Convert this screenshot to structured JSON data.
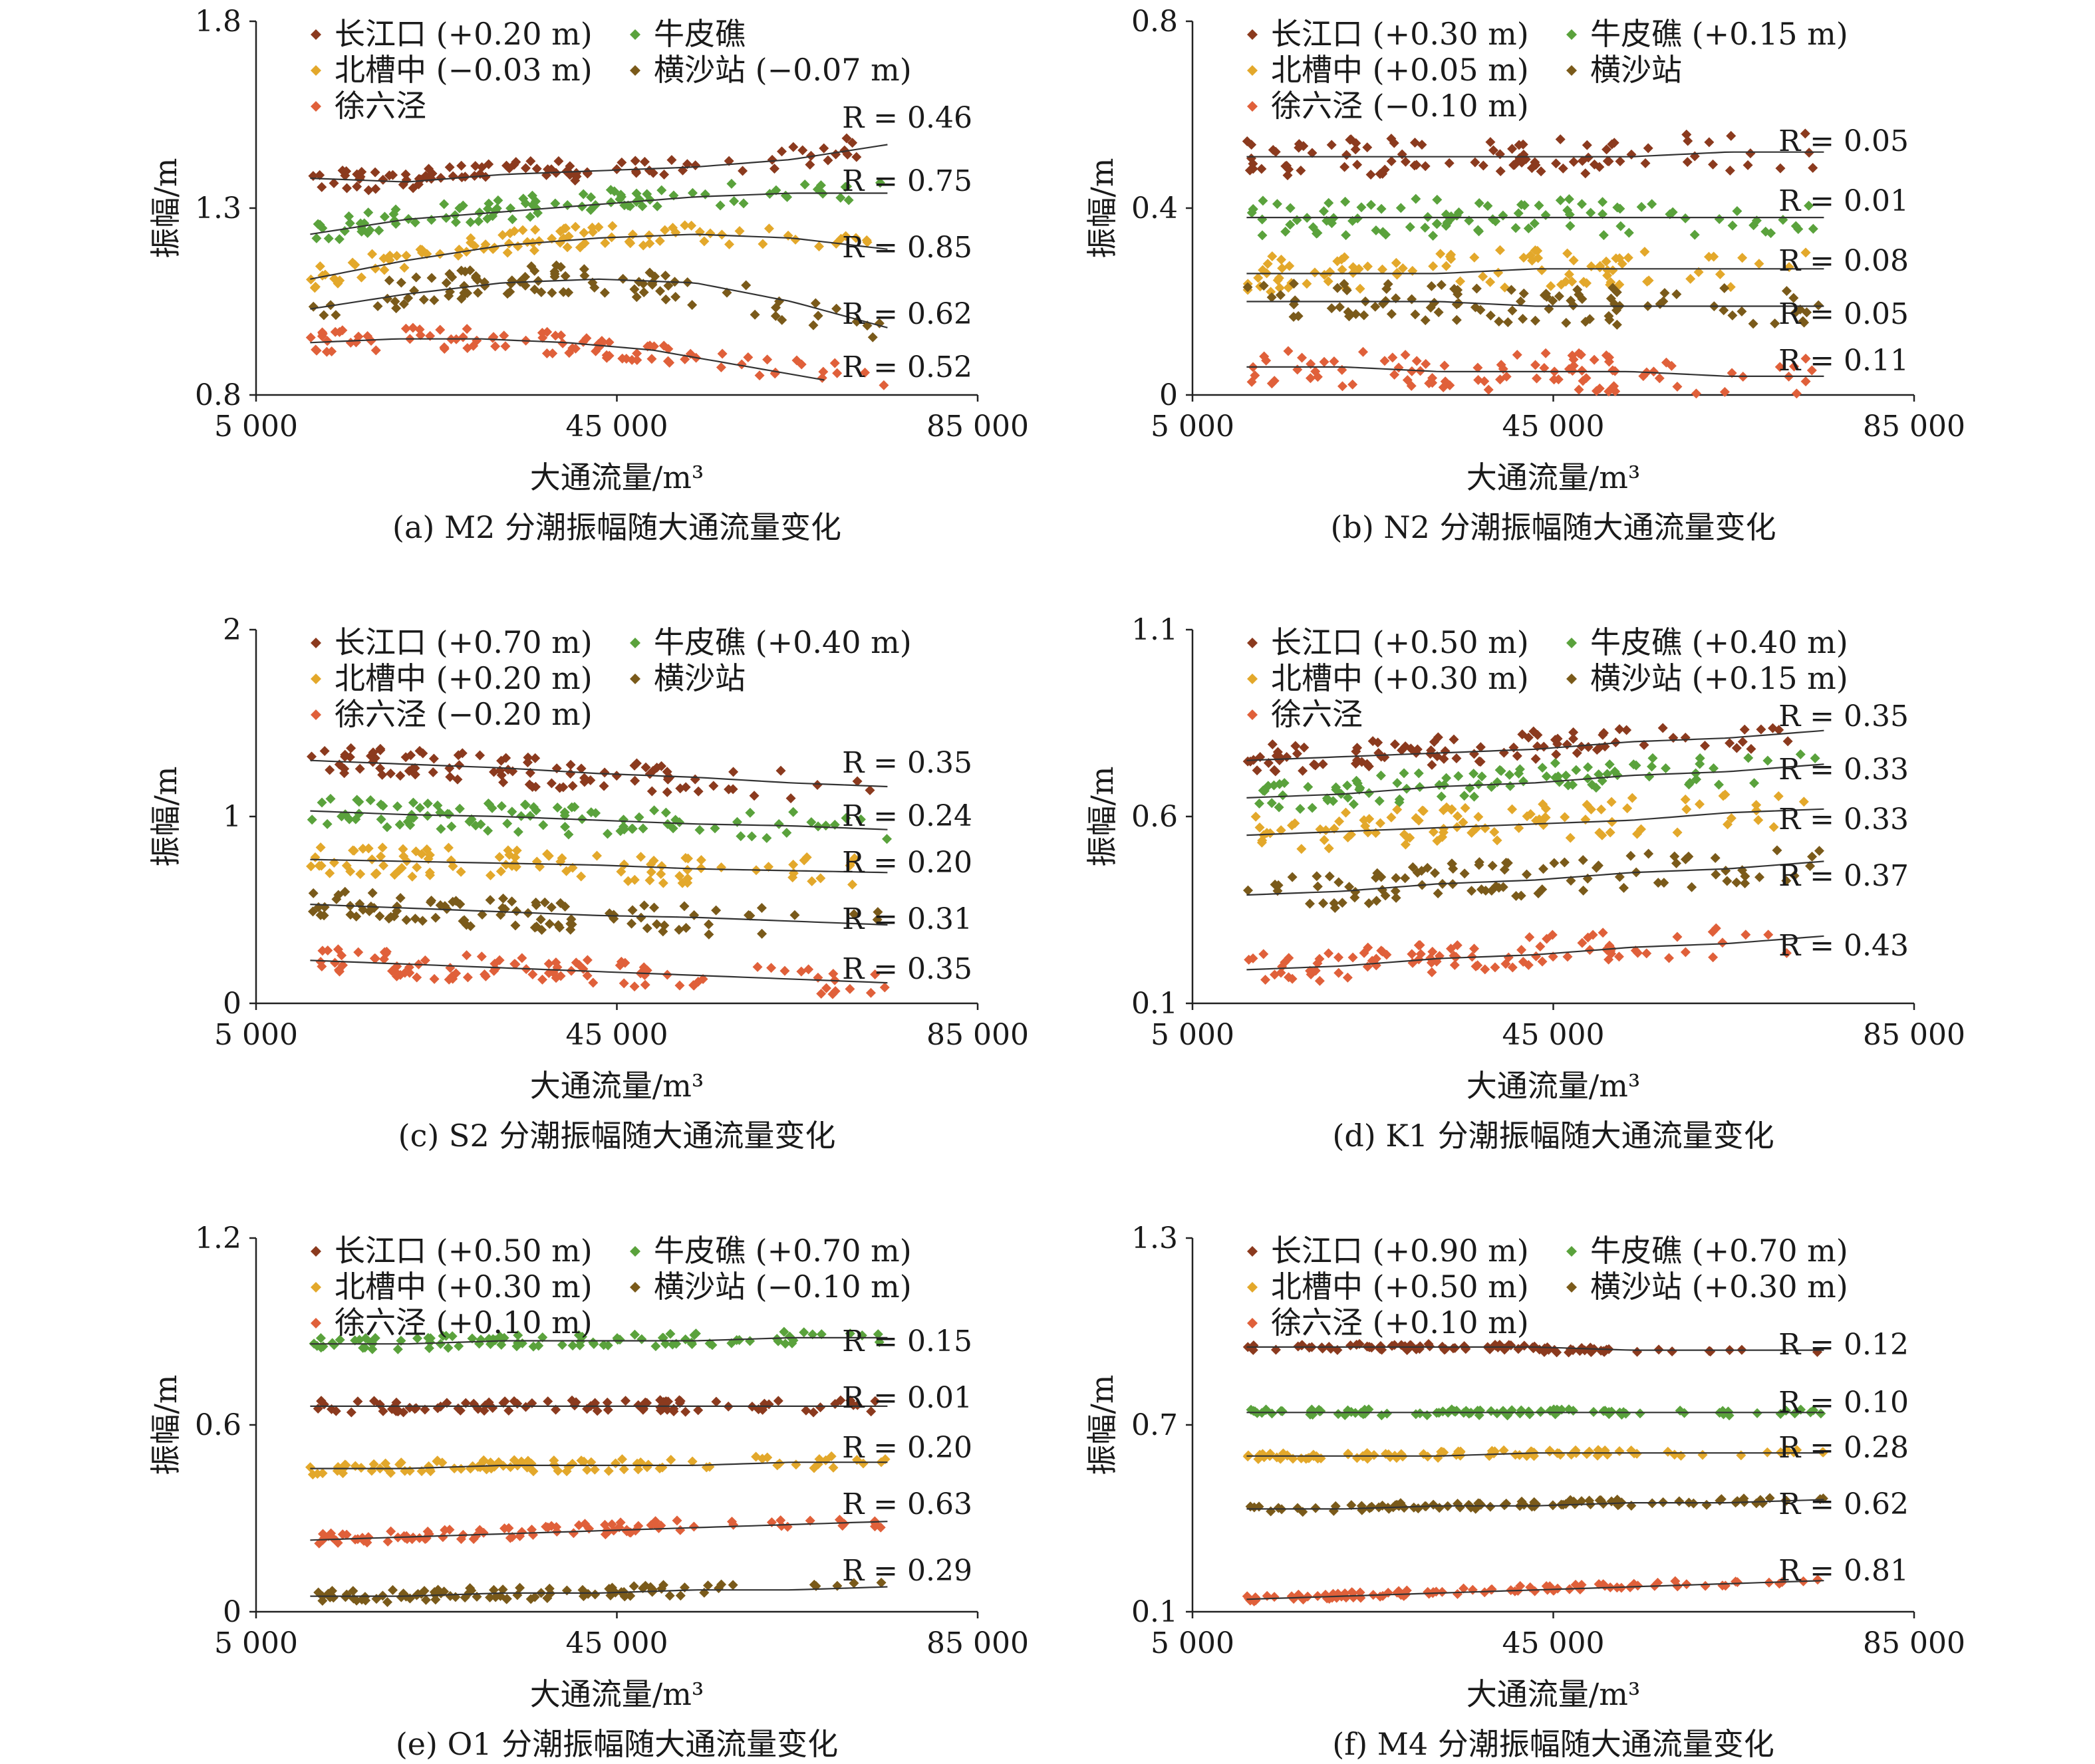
{
  "panels": [
    {
      "caption": "(a) M2 分潮振幅随大通流量变化",
      "ylabel": "振幅/m",
      "xlabel": "大通流量/m³",
      "ylim": [
        0.8,
        1.8
      ],
      "yticks": [
        "1.8",
        "1.3",
        "0.8"
      ],
      "xticks": [
        "5 000",
        "45 000",
        "85 000"
      ],
      "legend": [
        "长江口 (+0.20 m)",
        "牛皮礁",
        "北槽中 (−0.03 m)",
        "横沙站 (−0.07 m)",
        "徐六泾"
      ],
      "r_labels": [
        "R = 0.46",
        "R = 0.75",
        "R = 0.85",
        "R = 0.62",
        "R = 0.52"
      ]
    },
    {
      "caption": "(b) N2 分潮振幅随大通流量变化",
      "ylabel": "振幅/m",
      "xlabel": "大通流量/m³",
      "ylim": [
        0,
        0.8
      ],
      "yticks": [
        "0.8",
        "0.4",
        "0"
      ],
      "xticks": [
        "5 000",
        "45 000",
        "85 000"
      ],
      "legend": [
        "长江口 (+0.30 m)",
        "牛皮礁 (+0.15 m)",
        "北槽中 (+0.05 m)",
        "横沙站",
        "徐六泾 (−0.10 m)"
      ],
      "r_labels": [
        "R = 0.05",
        "R = 0.01",
        "R = 0.08",
        "R = 0.05",
        "R = 0.11"
      ]
    },
    {
      "caption": "(c) S2 分潮振幅随大通流量变化",
      "ylabel": "振幅/m",
      "xlabel": "大通流量/m³",
      "ylim": [
        0,
        2
      ],
      "yticks": [
        "2",
        "1",
        "0"
      ],
      "xticks": [
        "5 000",
        "45 000",
        "85 000"
      ],
      "legend": [
        "长江口 (+0.70 m)",
        "牛皮礁 (+0.40 m)",
        "北槽中 (+0.20 m)",
        "横沙站",
        "徐六泾 (−0.20 m)"
      ],
      "r_labels": [
        "R = 0.35",
        "R = 0.24",
        "R = 0.20",
        "R = 0.31",
        "R = 0.35"
      ]
    },
    {
      "caption": "(d) K1 分潮振幅随大通流量变化",
      "ylabel": "振幅/m",
      "xlabel": "大通流量/m³",
      "ylim": [
        0.1,
        1.1
      ],
      "yticks": [
        "1.1",
        "0.6",
        "0.1"
      ],
      "xticks": [
        "5 000",
        "45 000",
        "85 000"
      ],
      "legend": [
        "长江口 (+0.50 m)",
        "牛皮礁 (+0.40 m)",
        "北槽中 (+0.30 m)",
        "横沙站 (+0.15 m)",
        "徐六泾"
      ],
      "r_labels": [
        "R = 0.35",
        "R = 0.33",
        "R = 0.33",
        "R = 0.37",
        "R = 0.43"
      ]
    },
    {
      "caption": "(e) O1 分潮振幅随大通流量变化",
      "ylabel": "振幅/m",
      "xlabel": "大通流量/m³",
      "ylim": [
        0,
        1.2
      ],
      "yticks": [
        "1.2",
        "0.6",
        "0"
      ],
      "xticks": [
        "5 000",
        "45 000",
        "85 000"
      ],
      "legend": [
        "长江口 (+0.50 m)",
        "牛皮礁 (+0.70 m)",
        "北槽中 (+0.30 m)",
        "横沙站 (−0.10 m)",
        "徐六泾 (+0.10 m)"
      ],
      "r_labels": [
        "R = 0.15",
        "R = 0.01",
        "R = 0.20",
        "R = 0.63",
        "R = 0.29"
      ]
    },
    {
      "caption": "(f) M4 分潮振幅随大通流量变化",
      "ylabel": "振幅/m",
      "xlabel": "大通流量/m³",
      "ylim": [
        0.1,
        1.3
      ],
      "yticks": [
        "1.3",
        "0.7",
        "0.1"
      ],
      "xticks": [
        "5 000",
        "45 000",
        "85 000"
      ],
      "legend": [
        "长江口 (+0.90 m)",
        "牛皮礁 (+0.70 m)",
        "北槽中 (+0.50 m)",
        "横沙站 (+0.30 m)",
        "徐六泾 (+0.10 m)"
      ],
      "r_labels": [
        "R = 0.12",
        "R = 0.10",
        "R = 0.28",
        "R = 0.62",
        "R = 0.81"
      ]
    }
  ],
  "series_colors": [
    "#8b3a1e",
    "#5aa23c",
    "#e3a82b",
    "#7a5a1a",
    "#e0603a"
  ],
  "marker_shape": "diamond",
  "chart_data": [
    {
      "type": "scatter",
      "title": "(a) M2 分潮振幅随大通流量变化",
      "xlabel": "大通流量/m³",
      "ylabel": "振幅/m",
      "xlim": [
        5000,
        85000
      ],
      "ylim": [
        0.8,
        1.8
      ],
      "series": [
        {
          "name": "长江口 (+0.20 m)",
          "fit": [
            [
              11000,
              1.37
            ],
            [
              75000,
              1.47
            ]
          ],
          "center": [
            1.38,
            1.37,
            1.39,
            1.4,
            1.41,
            1.43,
            1.47
          ],
          "spread": 0.03,
          "R": 0.46
        },
        {
          "name": "牛皮礁",
          "fit": [
            [
              11000,
              1.23
            ],
            [
              75000,
              1.34
            ]
          ],
          "center": [
            1.23,
            1.27,
            1.29,
            1.31,
            1.33,
            1.34,
            1.34
          ],
          "spread": 0.03,
          "R": 0.75
        },
        {
          "name": "北槽中 (−0.03 m)",
          "fit": [
            [
              11000,
              1.1
            ],
            [
              75000,
              1.19
            ]
          ],
          "center": [
            1.11,
            1.16,
            1.2,
            1.22,
            1.23,
            1.22,
            1.19
          ],
          "spread": 0.03,
          "R": 0.85
        },
        {
          "name": "横沙站 (−0.07 m)",
          "fit": [
            [
              11000,
              1.02
            ],
            [
              75000,
              0.95
            ]
          ],
          "center": [
            1.03,
            1.07,
            1.1,
            1.11,
            1.1,
            1.05,
            0.98
          ],
          "spread": 0.04,
          "R": 0.62
        },
        {
          "name": "徐六泾",
          "fit": [
            [
              11000,
              0.93
            ],
            [
              68000,
              0.83
            ]
          ],
          "center": [
            0.94,
            0.95,
            0.95,
            0.94,
            0.92,
            0.88,
            0.84
          ],
          "spread": 0.03,
          "R": 0.52
        }
      ]
    },
    {
      "type": "scatter",
      "title": "(b) N2 分潮振幅随大通流量变化",
      "xlabel": "大通流量/m³",
      "ylabel": "振幅/m",
      "xlim": [
        5000,
        85000
      ],
      "ylim": [
        0,
        0.8
      ],
      "series": [
        {
          "name": "长江口 (+0.30 m)",
          "fit": [
            [
              11000,
              0.51
            ],
            [
              75000,
              0.52
            ]
          ],
          "center": [
            0.51,
            0.51,
            0.51,
            0.51,
            0.51,
            0.52,
            0.52
          ],
          "spread": 0.04,
          "R": 0.05
        },
        {
          "name": "牛皮礁 (+0.15 m)",
          "fit": [
            [
              11000,
              0.38
            ],
            [
              75000,
              0.38
            ]
          ],
          "center": [
            0.38,
            0.38,
            0.38,
            0.38,
            0.38,
            0.38,
            0.38
          ],
          "spread": 0.04,
          "R": 0.01
        },
        {
          "name": "北槽中 (+0.05 m)",
          "fit": [
            [
              11000,
              0.26
            ],
            [
              75000,
              0.27
            ]
          ],
          "center": [
            0.26,
            0.26,
            0.26,
            0.27,
            0.27,
            0.27,
            0.27
          ],
          "spread": 0.04,
          "R": 0.08
        },
        {
          "name": "横沙站",
          "fit": [
            [
              11000,
              0.2
            ],
            [
              75000,
              0.19
            ]
          ],
          "center": [
            0.2,
            0.2,
            0.2,
            0.19,
            0.19,
            0.19,
            0.19
          ],
          "spread": 0.04,
          "R": 0.05
        },
        {
          "name": "徐六泾 (−0.10 m)",
          "fit": [
            [
              11000,
              0.06
            ],
            [
              75000,
              0.04
            ]
          ],
          "center": [
            0.06,
            0.06,
            0.05,
            0.05,
            0.05,
            0.04,
            0.04
          ],
          "spread": 0.04,
          "R": 0.11
        }
      ]
    },
    {
      "type": "scatter",
      "title": "(c) S2 分潮振幅随大通流量变化",
      "xlabel": "大通流量/m³",
      "ylabel": "振幅/m",
      "xlim": [
        5000,
        85000
      ],
      "ylim": [
        0,
        2
      ],
      "series": [
        {
          "name": "长江口 (+0.70 m)",
          "fit": [
            [
              11000,
              1.3
            ],
            [
              75000,
              1.16
            ]
          ],
          "center": [
            1.3,
            1.28,
            1.26,
            1.23,
            1.21,
            1.18,
            1.16
          ],
          "spread": 0.08,
          "R": 0.35
        },
        {
          "name": "牛皮礁 (+0.40 m)",
          "fit": [
            [
              11000,
              1.03
            ],
            [
              75000,
              0.93
            ]
          ],
          "center": [
            1.03,
            1.01,
            1.0,
            0.98,
            0.96,
            0.95,
            0.93
          ],
          "spread": 0.08,
          "R": 0.24
        },
        {
          "name": "北槽中 (+0.20 m)",
          "fit": [
            [
              11000,
              0.77
            ],
            [
              75000,
              0.7
            ]
          ],
          "center": [
            0.77,
            0.76,
            0.75,
            0.74,
            0.72,
            0.71,
            0.7
          ],
          "spread": 0.08,
          "R": 0.2
        },
        {
          "name": "横沙站",
          "fit": [
            [
              11000,
              0.53
            ],
            [
              75000,
              0.42
            ]
          ],
          "center": [
            0.53,
            0.51,
            0.49,
            0.47,
            0.46,
            0.44,
            0.42
          ],
          "spread": 0.08,
          "R": 0.31
        },
        {
          "name": "徐六泾 (−0.20 m)",
          "fit": [
            [
              11000,
              0.23
            ],
            [
              75000,
              0.11
            ]
          ],
          "center": [
            0.23,
            0.21,
            0.19,
            0.17,
            0.15,
            0.13,
            0.11
          ],
          "spread": 0.07,
          "R": 0.35
        }
      ]
    },
    {
      "type": "scatter",
      "title": "(d) K1 分潮振幅随大通流量变化",
      "xlabel": "大通流量/m³",
      "ylabel": "振幅/m",
      "xlim": [
        5000,
        85000
      ],
      "ylim": [
        0.1,
        1.1
      ],
      "series": [
        {
          "name": "长江口 (+0.50 m)",
          "fit": [
            [
              11000,
              0.74
            ],
            [
              75000,
              0.83
            ]
          ],
          "center": [
            0.75,
            0.76,
            0.77,
            0.78,
            0.8,
            0.81,
            0.83
          ],
          "spread": 0.04,
          "R": 0.35
        },
        {
          "name": "牛皮礁 (+0.40 m)",
          "fit": [
            [
              11000,
              0.65
            ],
            [
              75000,
              0.74
            ]
          ],
          "center": [
            0.65,
            0.66,
            0.68,
            0.69,
            0.71,
            0.72,
            0.74
          ],
          "spread": 0.04,
          "R": 0.33
        },
        {
          "name": "北槽中 (+0.30 m)",
          "fit": [
            [
              11000,
              0.55
            ],
            [
              75000,
              0.62
            ]
          ],
          "center": [
            0.55,
            0.56,
            0.57,
            0.58,
            0.59,
            0.61,
            0.62
          ],
          "spread": 0.05,
          "R": 0.33
        },
        {
          "name": "横沙站 (+0.15 m)",
          "fit": [
            [
              11000,
              0.39
            ],
            [
              75000,
              0.48
            ]
          ],
          "center": [
            0.39,
            0.4,
            0.42,
            0.43,
            0.45,
            0.46,
            0.48
          ],
          "spread": 0.05,
          "R": 0.37
        },
        {
          "name": "徐六泾",
          "fit": [
            [
              11000,
              0.19
            ],
            [
              75000,
              0.28
            ]
          ],
          "center": [
            0.19,
            0.2,
            0.22,
            0.23,
            0.25,
            0.26,
            0.28
          ],
          "spread": 0.04,
          "R": 0.43
        }
      ]
    },
    {
      "type": "scatter",
      "title": "(e) O1 分潮振幅随大通流量变化",
      "xlabel": "大通流量/m³",
      "ylabel": "振幅/m",
      "xlim": [
        5000,
        85000
      ],
      "ylim": [
        0,
        1.2
      ],
      "series": [
        {
          "name": "长江口 (+0.50 m)",
          "fit": [
            [
              11000,
              0.66
            ],
            [
              75000,
              0.66
            ]
          ],
          "center": [
            0.66,
            0.66,
            0.66,
            0.66,
            0.66,
            0.66,
            0.66
          ],
          "spread": 0.02,
          "R": 0.01
        },
        {
          "name": "牛皮礁 (+0.70 m)",
          "fit": [
            [
              11000,
              0.86
            ],
            [
              75000,
              0.88
            ]
          ],
          "center": [
            0.86,
            0.86,
            0.87,
            0.87,
            0.87,
            0.88,
            0.88
          ],
          "spread": 0.02,
          "R": 0.15
        },
        {
          "name": "北槽中 (+0.30 m)",
          "fit": [
            [
              11000,
              0.46
            ],
            [
              75000,
              0.48
            ]
          ],
          "center": [
            0.46,
            0.46,
            0.47,
            0.47,
            0.47,
            0.48,
            0.48
          ],
          "spread": 0.02,
          "R": 0.2
        },
        {
          "name": "横沙站 (−0.10 m)",
          "fit": [
            [
              11000,
              0.05
            ],
            [
              75000,
              0.08
            ]
          ],
          "center": [
            0.05,
            0.05,
            0.06,
            0.06,
            0.07,
            0.07,
            0.08
          ],
          "spread": 0.02,
          "R": 0.29
        },
        {
          "name": "徐六泾 (+0.10 m)",
          "fit": [
            [
              11000,
              0.23
            ],
            [
              75000,
              0.29
            ]
          ],
          "center": [
            0.23,
            0.24,
            0.25,
            0.26,
            0.27,
            0.28,
            0.29
          ],
          "spread": 0.02,
          "R": 0.63
        }
      ]
    },
    {
      "type": "scatter",
      "title": "(f) M4 分潮振幅随大通流量变化",
      "xlabel": "大通流量/m³",
      "ylabel": "振幅/m",
      "xlim": [
        5000,
        85000
      ],
      "ylim": [
        0.1,
        1.3
      ],
      "series": [
        {
          "name": "长江口 (+0.90 m)",
          "fit": [
            [
              11000,
              0.95
            ],
            [
              75000,
              0.94
            ]
          ],
          "center": [
            0.95,
            0.95,
            0.95,
            0.95,
            0.94,
            0.94,
            0.94
          ],
          "spread": 0.01,
          "R": 0.12
        },
        {
          "name": "牛皮礁 (+0.70 m)",
          "fit": [
            [
              11000,
              0.74
            ],
            [
              75000,
              0.74
            ]
          ],
          "center": [
            0.74,
            0.74,
            0.74,
            0.74,
            0.74,
            0.74,
            0.74
          ],
          "spread": 0.01,
          "R": 0.1
        },
        {
          "name": "北槽中 (+0.50 m)",
          "fit": [
            [
              11000,
              0.6
            ],
            [
              75000,
              0.61
            ]
          ],
          "center": [
            0.6,
            0.6,
            0.6,
            0.61,
            0.61,
            0.61,
            0.61
          ],
          "spread": 0.01,
          "R": 0.28
        },
        {
          "name": "横沙站 (+0.30 m)",
          "fit": [
            [
              11000,
              0.43
            ],
            [
              75000,
              0.46
            ]
          ],
          "center": [
            0.43,
            0.43,
            0.44,
            0.44,
            0.45,
            0.45,
            0.46
          ],
          "spread": 0.01,
          "R": 0.62
        },
        {
          "name": "徐六泾 (+0.10 m)",
          "fit": [
            [
              11000,
              0.14
            ],
            [
              75000,
              0.2
            ]
          ],
          "center": [
            0.14,
            0.15,
            0.16,
            0.17,
            0.18,
            0.19,
            0.2
          ],
          "spread": 0.01,
          "R": 0.81
        }
      ]
    }
  ]
}
